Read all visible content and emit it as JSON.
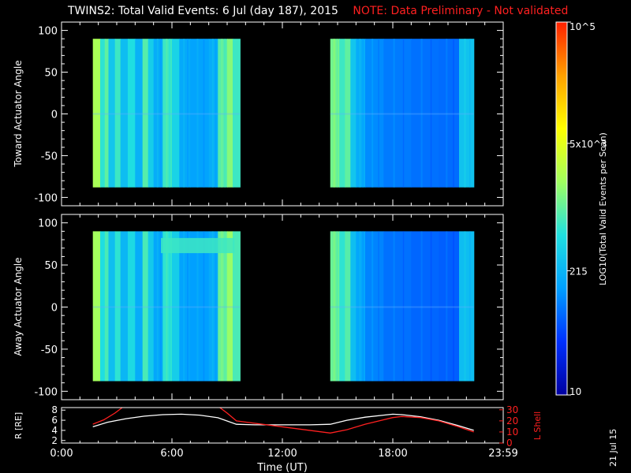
{
  "title": "TWINS2: Total Valid Events:  6 Jul (day 187), 2015",
  "note": "NOTE: Data Preliminary - Not validated",
  "run_date": "21 Jul 15",
  "colors": {
    "note": "#ff2020",
    "r_line": "#ffffff",
    "lshell_line": "#ff2020",
    "no_data": "#000000"
  },
  "colorbar": {
    "label": "LOG10(Total Valid Events per Scan)",
    "scale": "log",
    "range": [
      10,
      100000
    ],
    "colormap": [
      "#0000a0",
      "#0030ff",
      "#00a0ff",
      "#20e0e0",
      "#a0ff60",
      "#ffff00",
      "#ffa000",
      "#ff2000"
    ],
    "ticks": [
      {
        "value": 10,
        "label": "10"
      },
      {
        "value": 215,
        "label": "215"
      },
      {
        "value": 5000,
        "label": "5x10^3"
      },
      {
        "value": 100000,
        "label": "10^5"
      }
    ]
  },
  "chart_data": [
    {
      "type": "heatmap",
      "panel": "toward",
      "ylabel": "Toward Actuator Angle",
      "ylim": [
        -110,
        110
      ],
      "yticks": [
        -100,
        -50,
        0,
        50,
        100
      ],
      "xlim": [
        0,
        24
      ],
      "y_coverage": [
        -88,
        90
      ],
      "data_intervals": [
        [
          1.7,
          9.7
        ],
        [
          14.6,
          22.4
        ]
      ],
      "columns": [
        {
          "t0": 1.7,
          "t1": 2.1,
          "v": 2200
        },
        {
          "t0": 2.1,
          "t1": 2.35,
          "v": 600
        },
        {
          "t0": 2.35,
          "t1": 2.55,
          "v": 1000
        },
        {
          "t0": 2.55,
          "t1": 2.9,
          "v": 300
        },
        {
          "t0": 2.9,
          "t1": 3.2,
          "v": 700
        },
        {
          "t0": 3.2,
          "t1": 3.6,
          "v": 250
        },
        {
          "t0": 3.6,
          "t1": 4.0,
          "v": 500
        },
        {
          "t0": 4.0,
          "t1": 4.4,
          "v": 200
        },
        {
          "t0": 4.4,
          "t1": 4.7,
          "v": 900
        },
        {
          "t0": 4.7,
          "t1": 5.0,
          "v": 350
        },
        {
          "t0": 5.0,
          "t1": 5.5,
          "v": 180
        },
        {
          "t0": 5.5,
          "t1": 6.0,
          "v": 700
        },
        {
          "t0": 6.0,
          "t1": 6.4,
          "v": 400
        },
        {
          "t0": 6.4,
          "t1": 7.0,
          "v": 170
        },
        {
          "t0": 7.0,
          "t1": 8.0,
          "v": 150
        },
        {
          "t0": 8.0,
          "t1": 8.5,
          "v": 180
        },
        {
          "t0": 8.5,
          "t1": 9.0,
          "v": 900
        },
        {
          "t0": 9.0,
          "t1": 9.3,
          "v": 1500
        },
        {
          "t0": 9.3,
          "t1": 9.7,
          "v": 700
        },
        {
          "t0": 14.6,
          "t1": 15.1,
          "v": 1200
        },
        {
          "t0": 15.1,
          "t1": 15.4,
          "v": 700
        },
        {
          "t0": 15.4,
          "t1": 15.7,
          "v": 1000
        },
        {
          "t0": 15.7,
          "t1": 16.0,
          "v": 300
        },
        {
          "t0": 16.0,
          "t1": 16.5,
          "v": 180
        },
        {
          "t0": 16.5,
          "t1": 17.5,
          "v": 110
        },
        {
          "t0": 17.5,
          "t1": 19.0,
          "v": 90
        },
        {
          "t0": 19.0,
          "t1": 20.5,
          "v": 80
        },
        {
          "t0": 20.5,
          "t1": 21.6,
          "v": 75
        },
        {
          "t0": 21.6,
          "t1": 22.4,
          "v": 280
        }
      ]
    },
    {
      "type": "heatmap",
      "panel": "away",
      "ylabel": "Away Actuator Angle",
      "ylim": [
        -110,
        110
      ],
      "yticks": [
        -100,
        -50,
        0,
        50,
        100
      ],
      "xlim": [
        0,
        24
      ],
      "y_coverage": [
        -88,
        90
      ],
      "data_intervals": [
        [
          1.7,
          9.7
        ],
        [
          14.6,
          22.4
        ]
      ],
      "columns": [
        {
          "t0": 1.7,
          "t1": 2.1,
          "v": 2000
        },
        {
          "t0": 2.1,
          "t1": 2.35,
          "v": 500
        },
        {
          "t0": 2.35,
          "t1": 2.55,
          "v": 800
        },
        {
          "t0": 2.55,
          "t1": 2.9,
          "v": 260
        },
        {
          "t0": 2.9,
          "t1": 3.2,
          "v": 600
        },
        {
          "t0": 3.2,
          "t1": 3.6,
          "v": 220
        },
        {
          "t0": 3.6,
          "t1": 4.0,
          "v": 450
        },
        {
          "t0": 4.0,
          "t1": 4.4,
          "v": 180
        },
        {
          "t0": 4.4,
          "t1": 4.7,
          "v": 800
        },
        {
          "t0": 4.7,
          "t1": 5.0,
          "v": 320
        },
        {
          "t0": 5.0,
          "t1": 5.5,
          "v": 160
        },
        {
          "t0": 5.5,
          "t1": 6.0,
          "v": 600
        },
        {
          "t0": 6.0,
          "t1": 6.4,
          "v": 350
        },
        {
          "t0": 6.4,
          "t1": 7.0,
          "v": 150
        },
        {
          "t0": 7.0,
          "t1": 8.0,
          "v": 140
        },
        {
          "t0": 8.0,
          "t1": 8.5,
          "v": 170
        },
        {
          "t0": 8.5,
          "t1": 9.0,
          "v": 1100
        },
        {
          "t0": 9.0,
          "t1": 9.3,
          "v": 1800
        },
        {
          "t0": 9.3,
          "t1": 9.7,
          "v": 800
        },
        {
          "t0": 14.6,
          "t1": 15.1,
          "v": 1100
        },
        {
          "t0": 15.1,
          "t1": 15.4,
          "v": 600
        },
        {
          "t0": 15.4,
          "t1": 15.7,
          "v": 900
        },
        {
          "t0": 15.7,
          "t1": 16.0,
          "v": 260
        },
        {
          "t0": 16.0,
          "t1": 16.5,
          "v": 160
        },
        {
          "t0": 16.5,
          "t1": 17.5,
          "v": 100
        },
        {
          "t0": 17.5,
          "t1": 19.0,
          "v": 80
        },
        {
          "t0": 19.0,
          "t1": 20.5,
          "v": 70
        },
        {
          "t0": 20.5,
          "t1": 21.6,
          "v": 65
        },
        {
          "t0": 21.6,
          "t1": 22.4,
          "v": 250
        }
      ],
      "features": [
        {
          "t0": 5.4,
          "t1": 9.4,
          "y0": 64,
          "y1": 82,
          "v": 700
        }
      ]
    },
    {
      "type": "line",
      "panel": "ephemeris",
      "xlabel": "Time (UT)",
      "xlim": [
        0,
        24
      ],
      "xticks": [
        {
          "value": 0,
          "label": "0:00"
        },
        {
          "value": 6,
          "label": "6:00"
        },
        {
          "value": 12,
          "label": "12:00"
        },
        {
          "value": 18,
          "label": "18:00"
        },
        {
          "value": 24,
          "label": "23:59"
        }
      ],
      "left_axis": {
        "label": "R [RE]",
        "range": [
          1.5,
          8.5
        ],
        "ticks": [
          2,
          4,
          6,
          8
        ]
      },
      "right_axis": {
        "label": "L Shell",
        "range": [
          0,
          32
        ],
        "ticks": [
          0,
          10,
          20,
          30
        ]
      },
      "series": [
        {
          "axis": "left",
          "color": "#ffffff",
          "x": [
            1.7,
            2.5,
            3.5,
            4.5,
            5.5,
            6.5,
            7.5,
            8.5,
            9.5,
            10.5,
            11.5,
            12.5,
            13.5,
            14.6,
            15.5,
            16.5,
            17.5,
            18.0,
            18.5,
            19.5,
            20.5,
            21.5,
            22.4
          ],
          "y": [
            4.7,
            5.6,
            6.3,
            6.8,
            7.1,
            7.2,
            7.0,
            6.5,
            5.2,
            5.1,
            5.1,
            5.1,
            5.1,
            5.2,
            6.0,
            6.6,
            7.0,
            7.2,
            7.1,
            6.7,
            6.0,
            5.0,
            4.0
          ]
        },
        {
          "axis": "right",
          "color": "#ff2020",
          "segments": [
            {
              "x": [
                1.7,
                2.3,
                2.9,
                3.3
              ],
              "y": [
                17,
                21,
                27,
                32
              ]
            },
            {
              "x": [
                8.6,
                9.0,
                9.5,
                14.6,
                15.5,
                16.5,
                17.5,
                18.0,
                18.5,
                19.5,
                20.5,
                21.5,
                22.4
              ],
              "y": [
                32,
                27,
                20,
                9,
                12,
                17,
                21,
                23,
                24,
                23,
                20,
                15,
                10
              ]
            }
          ]
        }
      ]
    }
  ]
}
